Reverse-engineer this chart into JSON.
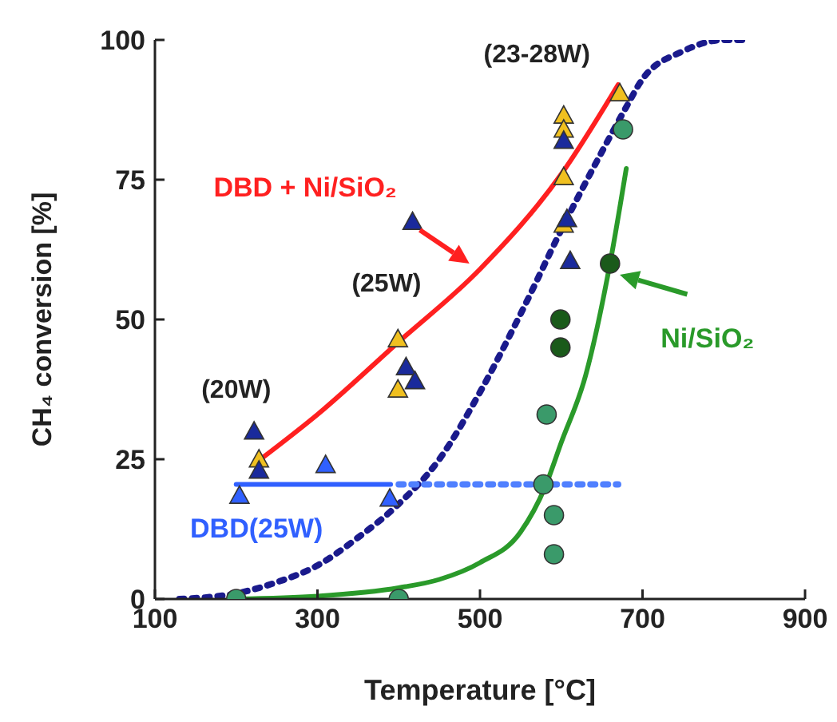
{
  "chart_data": {
    "type": "scatter",
    "xlabel": "Temperature  [°C]",
    "ylabel": "CH₄ conversion [%]",
    "xlim": [
      100,
      900
    ],
    "xticks": [
      100,
      300,
      500,
      700,
      900
    ],
    "ylim": [
      0,
      100
    ],
    "yticks": [
      0,
      25,
      50,
      75,
      100
    ],
    "grid": false,
    "legend": "right",
    "series": [
      {
        "type": "line",
        "line_style": "dotted",
        "marker": "none",
        "color": "#1a1a8c",
        "x": [
          130,
          200,
          250,
          300,
          350,
          400,
          450,
          500,
          550,
          600,
          650,
          680,
          700,
          750,
          800,
          830
        ],
        "values": [
          0,
          1,
          3,
          6,
          11,
          17,
          25,
          37,
          51,
          66,
          80,
          88,
          93,
          98,
          100,
          100
        ]
      },
      {
        "type": "line",
        "name": "DBD + Ni/SiO₂",
        "line_style": "solid",
        "marker": "none",
        "color": "#ff2020",
        "x": [
          230,
          300,
          400,
          500,
          600,
          670
        ],
        "values": [
          25,
          33,
          46,
          59,
          76,
          92
        ]
      },
      {
        "type": "line",
        "name": "Ni/SiO₂",
        "line_style": "solid",
        "marker": "none",
        "color": "#2a9a2a",
        "x": [
          200,
          300,
          400,
          450,
          500,
          550,
          580,
          600,
          630,
          660,
          680
        ],
        "values": [
          0,
          0.5,
          2,
          3.5,
          6.5,
          12,
          20,
          28,
          40,
          60,
          77
        ]
      },
      {
        "type": "line",
        "name": "DBD(25W)",
        "line_style": "solid",
        "marker": "none",
        "color": "#3060ff",
        "x": [
          200,
          390
        ],
        "values": [
          20.5,
          20.5
        ]
      },
      {
        "type": "line",
        "line_style": "dotted",
        "marker": "none",
        "color": "#5080ff",
        "x": [
          400,
          670
        ],
        "values": [
          20.5,
          20.5
        ]
      },
      {
        "marker": "triangle",
        "color": "#3060ff",
        "x": [
          204,
          310,
          389
        ],
        "values": [
          18.5,
          24,
          18
        ]
      },
      {
        "marker": "triangle",
        "color": "#f0c020",
        "x": [
          228,
          399,
          399,
          603,
          603,
          603,
          603,
          672
        ],
        "values": [
          25,
          46.5,
          37.5,
          86.5,
          84,
          75.5,
          67,
          90.5
        ]
      },
      {
        "marker": "triangle",
        "color": "#1a2a9c",
        "x": [
          222,
          228,
          417,
          409,
          420,
          603,
          607,
          611
        ],
        "values": [
          30,
          23,
          67.5,
          41.5,
          39,
          82,
          68,
          60.5
        ]
      },
      {
        "marker": "circle",
        "color": "#3a9a6a",
        "x": [
          200,
          400,
          582,
          578,
          591,
          591,
          676
        ],
        "values": [
          0,
          0,
          33,
          20.5,
          15,
          8,
          84
        ]
      },
      {
        "marker": "circle",
        "color": "#1a5a1a",
        "x": [
          599,
          599,
          660
        ],
        "values": [
          50,
          45,
          60
        ]
      }
    ],
    "annotations": [
      "(20W)",
      "(25W)",
      "(23-28W)"
    ]
  }
}
